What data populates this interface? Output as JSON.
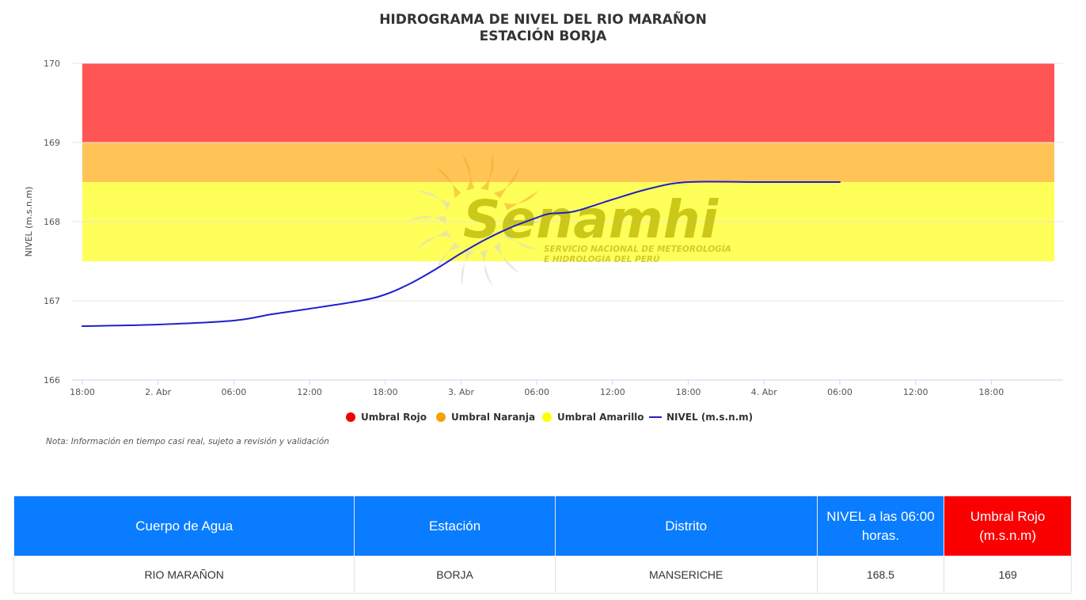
{
  "chart_data": {
    "type": "line",
    "title": "HIDROGRAMA DE NIVEL DEL RIO MARAÑON",
    "subtitle": "ESTACIÓN BORJA",
    "ylabel": "NIVEL (m.s.n.m)",
    "xlabel": "",
    "ylim": [
      166,
      170
    ],
    "yticks": [
      166,
      167,
      168,
      169,
      170
    ],
    "x_range": [
      "01 Abr 18:00",
      "04 Abr 21:00"
    ],
    "xticks": [
      {
        "t": "01 Abr 18:00",
        "label": "18:00"
      },
      {
        "t": "02 Abr 00:00",
        "label": "2. Abr"
      },
      {
        "t": "02 Abr 06:00",
        "label": "06:00"
      },
      {
        "t": "02 Abr 12:00",
        "label": "12:00"
      },
      {
        "t": "02 Abr 18:00",
        "label": "18:00"
      },
      {
        "t": "03 Abr 00:00",
        "label": "3. Abr"
      },
      {
        "t": "03 Abr 06:00",
        "label": "06:00"
      },
      {
        "t": "03 Abr 12:00",
        "label": "12:00"
      },
      {
        "t": "03 Abr 18:00",
        "label": "18:00"
      },
      {
        "t": "04 Abr 00:00",
        "label": "4. Abr"
      },
      {
        "t": "04 Abr 06:00",
        "label": "06:00"
      },
      {
        "t": "04 Abr 12:00",
        "label": "12:00"
      },
      {
        "t": "04 Abr 18:00",
        "label": "18:00"
      }
    ],
    "bands": [
      {
        "name": "Umbral Rojo",
        "from": 169,
        "to": 170,
        "color": "#ff5555"
      },
      {
        "name": "Umbral Naranja",
        "from": 168.5,
        "to": 169,
        "color": "#ffc356"
      },
      {
        "name": "Umbral Amarillo",
        "from": 167.5,
        "to": 168.5,
        "color": "#ffff59"
      }
    ],
    "series": [
      {
        "name": "NIVEL (m.s.n.m)",
        "color": "#1f1fcc",
        "points": [
          {
            "t": "01 Abr 18:00",
            "y": 166.68
          },
          {
            "t": "02 Abr 00:00",
            "y": 166.7
          },
          {
            "t": "02 Abr 06:00",
            "y": 166.75
          },
          {
            "t": "02 Abr 09:00",
            "y": 166.83
          },
          {
            "t": "02 Abr 12:00",
            "y": 166.9
          },
          {
            "t": "02 Abr 16:00",
            "y": 167.0
          },
          {
            "t": "02 Abr 18:00",
            "y": 167.08
          },
          {
            "t": "02 Abr 20:00",
            "y": 167.22
          },
          {
            "t": "02 Abr 22:00",
            "y": 167.4
          },
          {
            "t": "03 Abr 00:00",
            "y": 167.6
          },
          {
            "t": "03 Abr 02:00",
            "y": 167.78
          },
          {
            "t": "03 Abr 04:00",
            "y": 167.93
          },
          {
            "t": "03 Abr 06:00",
            "y": 168.05
          },
          {
            "t": "03 Abr 07:00",
            "y": 168.1
          },
          {
            "t": "03 Abr 09:00",
            "y": 168.13
          },
          {
            "t": "03 Abr 12:00",
            "y": 168.28
          },
          {
            "t": "03 Abr 15:00",
            "y": 168.42
          },
          {
            "t": "03 Abr 18:00",
            "y": 168.5
          },
          {
            "t": "04 Abr 00:00",
            "y": 168.5
          },
          {
            "t": "04 Abr 06:00",
            "y": 168.5
          }
        ]
      }
    ],
    "legend": [
      "Umbral Rojo",
      "Umbral Naranja",
      "Umbral Amarillo",
      "NIVEL (m.s.n.m)"
    ],
    "legend_position": "bottom-center",
    "legend_colors": [
      "#f20000",
      "#f5a300",
      "#ffff00",
      "#1f1fcc"
    ],
    "grid": true
  },
  "watermark": {
    "brand": "Senamhi",
    "line1": "SERVICIO NACIONAL DE METEOROLOGÍA",
    "line2": "E HIDROLOGÍA DEL PERÚ"
  },
  "note": "Nota: Información en tiempo casi real, sujeto a revisión y validación",
  "table": {
    "headers": [
      "Cuerpo de Agua",
      "Estación",
      "Distrito",
      "NIVEL a las 06:00 horas.",
      "Umbral Rojo (m.s.n.m)"
    ],
    "row": [
      "RIO MARAÑON",
      "BORJA",
      "MANSERICHE",
      "168.5",
      "169"
    ]
  }
}
